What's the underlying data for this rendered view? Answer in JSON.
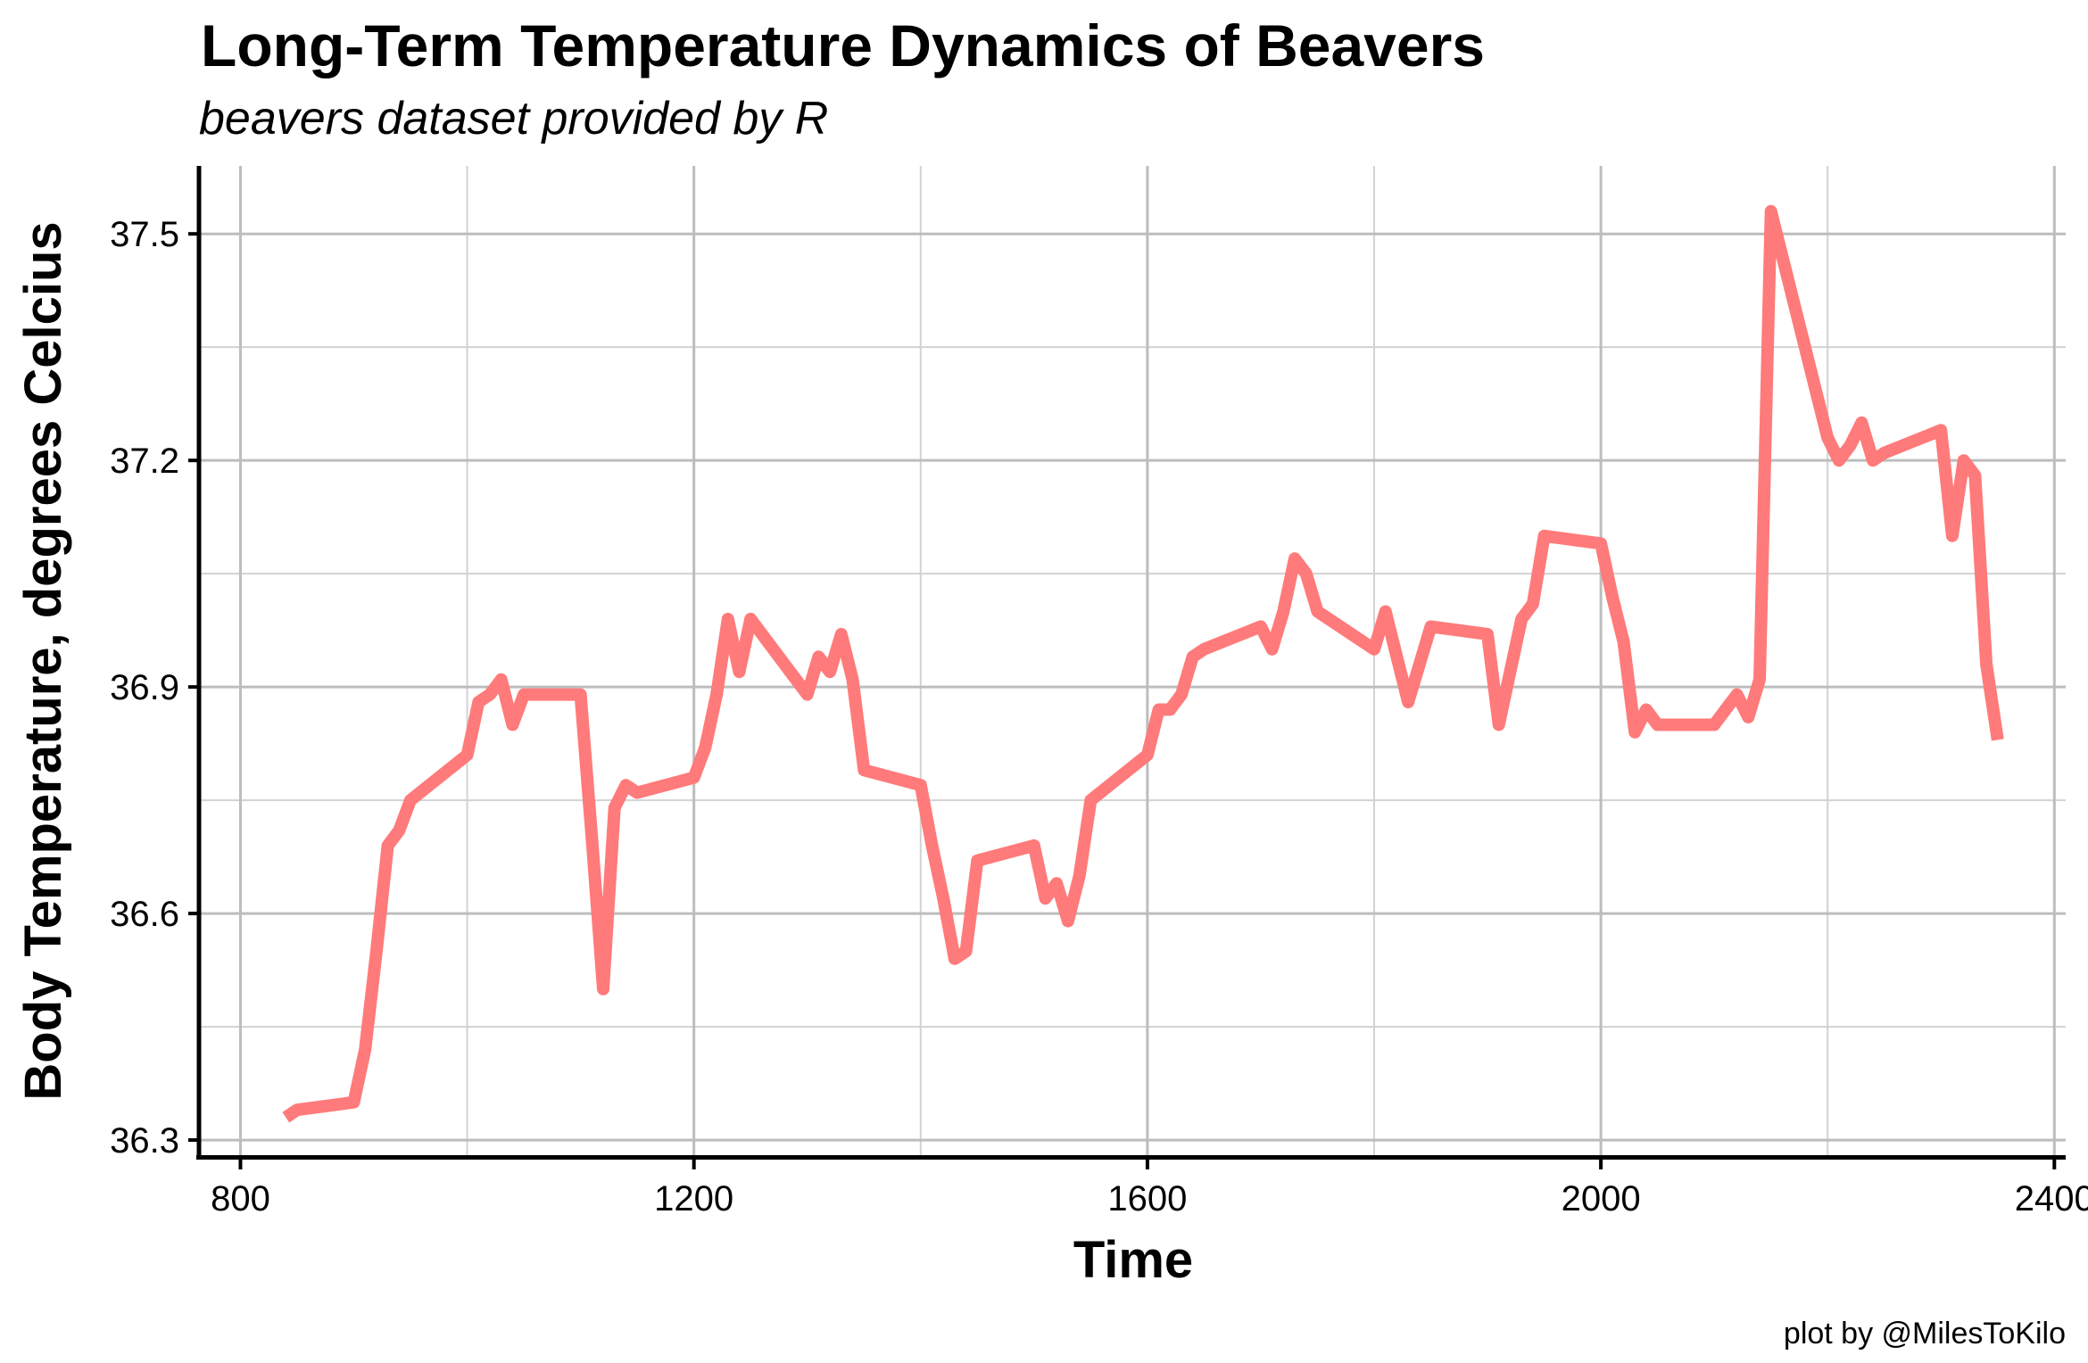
{
  "chart_data": {
    "type": "line",
    "title": "Long-Term Temperature Dynamics of Beavers",
    "subtitle": "beavers dataset provided by R",
    "xlabel": "Time",
    "ylabel": "Body Temperature, degrees Celcius",
    "caption": "plot by @MilesToKilo",
    "xlim": [
      765,
      2410
    ],
    "ylim": [
      36.28,
      37.59
    ],
    "xticks": [
      800,
      1200,
      1600,
      2000,
      2400
    ],
    "xtick_labels": [
      "800",
      "1200",
      "1600",
      "2000",
      "2400"
    ],
    "yticks": [
      36.3,
      36.6,
      36.9,
      37.2,
      37.5
    ],
    "ytick_labels": [
      "36.3",
      "36.6",
      "36.9",
      "37.2",
      "37.5"
    ],
    "grid": true,
    "legend": "none",
    "line_color": "#FF7A7A",
    "series": [
      {
        "x": [
          840,
          850,
          900,
          910,
          920,
          930,
          940,
          950,
          1000,
          1010,
          1020,
          1030,
          1040,
          1050,
          1100,
          1110,
          1120,
          1130,
          1140,
          1150,
          1200,
          1210,
          1220,
          1230,
          1240,
          1250,
          1300,
          1310,
          1320,
          1330,
          1340,
          1350,
          1400,
          1410,
          1420,
          1430,
          1440,
          1450,
          1500,
          1510,
          1520,
          1530,
          1540,
          1550,
          1600,
          1610,
          1620,
          1630,
          1640,
          1650,
          1700,
          1710,
          1720,
          1730,
          1740,
          1750,
          1800,
          1810,
          1820,
          1830,
          1840,
          1850,
          1900,
          1910,
          1920,
          1930,
          1940,
          1950,
          2000,
          2010,
          2020,
          2030,
          2040,
          2050,
          2100,
          2110,
          2120,
          2130,
          2140,
          2150,
          2200,
          2210,
          2220,
          2230,
          2240,
          2250,
          2300,
          2310,
          2320,
          2330,
          2340,
          2350
        ],
        "y": [
          36.33,
          36.34,
          36.35,
          36.42,
          36.55,
          36.69,
          36.71,
          36.75,
          36.81,
          36.88,
          36.89,
          36.91,
          36.85,
          36.89,
          36.89,
          36.7,
          36.5,
          36.74,
          36.77,
          36.76,
          36.78,
          36.82,
          36.89,
          36.99,
          36.92,
          36.99,
          36.89,
          36.94,
          36.92,
          36.97,
          36.91,
          36.79,
          36.77,
          36.69,
          36.62,
          36.54,
          36.55,
          36.67,
          36.69,
          36.62,
          36.64,
          36.59,
          36.65,
          36.75,
          36.81,
          36.87,
          36.87,
          36.89,
          36.94,
          36.95,
          36.98,
          36.95,
          37.0,
          37.07,
          37.05,
          37.0,
          36.95,
          37.0,
          36.94,
          36.88,
          36.93,
          36.98,
          36.97,
          36.85,
          36.92,
          36.99,
          37.01,
          37.1,
          37.09,
          37.02,
          36.96,
          36.84,
          36.87,
          36.85,
          36.85,
          36.87,
          36.89,
          36.86,
          36.91,
          37.53,
          37.23,
          37.2,
          37.22,
          37.25,
          37.2,
          37.21,
          37.24,
          37.1,
          37.2,
          37.18,
          36.93,
          36.83
        ]
      }
    ]
  }
}
